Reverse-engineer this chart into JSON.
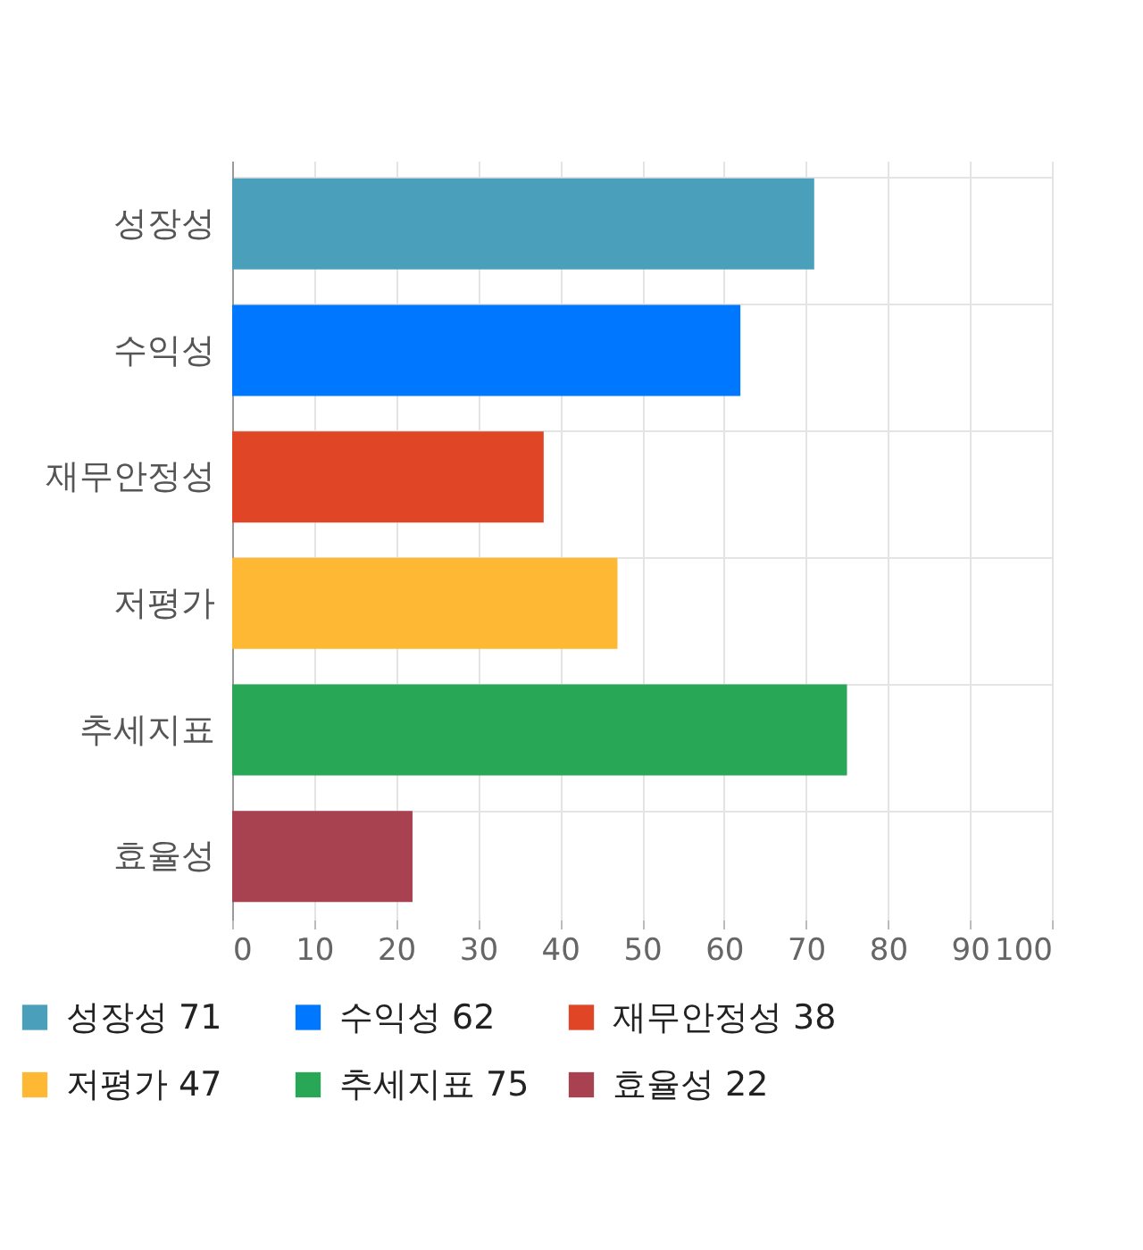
{
  "chart_data": {
    "type": "bar",
    "orientation": "horizontal",
    "categories": [
      "성장성",
      "수익성",
      "재무안정성",
      "저평가",
      "추세지표",
      "효율성"
    ],
    "series": [
      {
        "name": "성장성 71",
        "color": "#4aa0ba",
        "values": [
          71,
          null,
          null,
          null,
          null,
          null
        ]
      },
      {
        "name": "수익성 62",
        "color": "#0077ff",
        "values": [
          null,
          62,
          null,
          null,
          null,
          null
        ]
      },
      {
        "name": "재무안정성 38",
        "color": "#e04526",
        "values": [
          null,
          null,
          38,
          null,
          null,
          null
        ]
      },
      {
        "name": "저평가 47",
        "color": "#ffb833",
        "values": [
          null,
          null,
          null,
          47,
          null,
          null
        ]
      },
      {
        "name": "추세지표 75",
        "color": "#28a857",
        "values": [
          null,
          null,
          null,
          null,
          75,
          null
        ]
      },
      {
        "name": "효율성 22",
        "color": "#a84150",
        "values": [
          null,
          null,
          null,
          null,
          null,
          22
        ]
      }
    ],
    "xlim": [
      0,
      100
    ],
    "xticks": [
      0,
      10,
      20,
      30,
      40,
      50,
      60,
      70,
      80,
      90,
      100
    ],
    "grid": true,
    "legend": "bottom"
  }
}
